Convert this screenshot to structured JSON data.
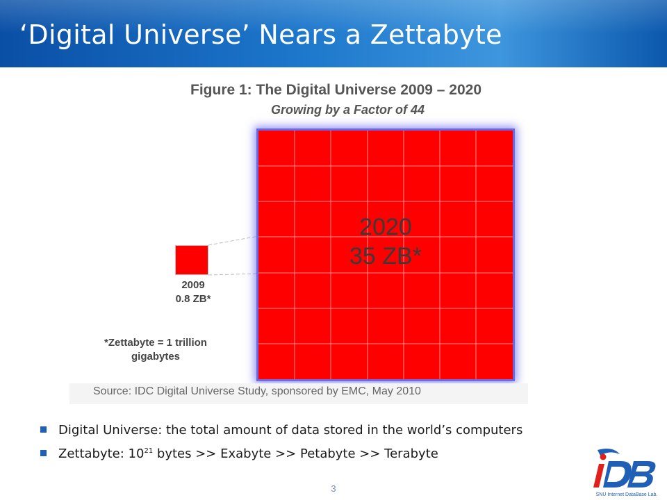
{
  "slide": {
    "title": "‘Digital Universe’ Nears a Zettabyte",
    "page_number": "3"
  },
  "figure": {
    "title": "Figure 1:  The Digital Universe 2009 – 2020",
    "subtitle": "Growing by a Factor of 44",
    "large_block": {
      "year": "2020",
      "value": "35 ZB*"
    },
    "small_block": {
      "year": "2009",
      "value": "0.8 ZB*"
    },
    "footnote_line1": "*Zettabyte = 1 trillion",
    "footnote_line2": "gigabytes",
    "source": "Source: IDC Digital Universe Study, sponsored by EMC, May 2010",
    "colors": {
      "block": "#ff0000",
      "glow": "#6a6ae8"
    }
  },
  "bullets": {
    "item1": "Digital Universe: the total amount of data stored in the world’s computers",
    "item2_prefix": "Zettabyte: 10",
    "item2_exponent": "21",
    "item2_suffix": " bytes >> Exabyte >> Petabyte >> Terabyte"
  },
  "logo": {
    "letters": "iDB",
    "caption": "SNU Internet DataBase Lab."
  },
  "theme": {
    "title_bar": "#1d77cb",
    "bullet_marker": "#1f5fb5"
  }
}
